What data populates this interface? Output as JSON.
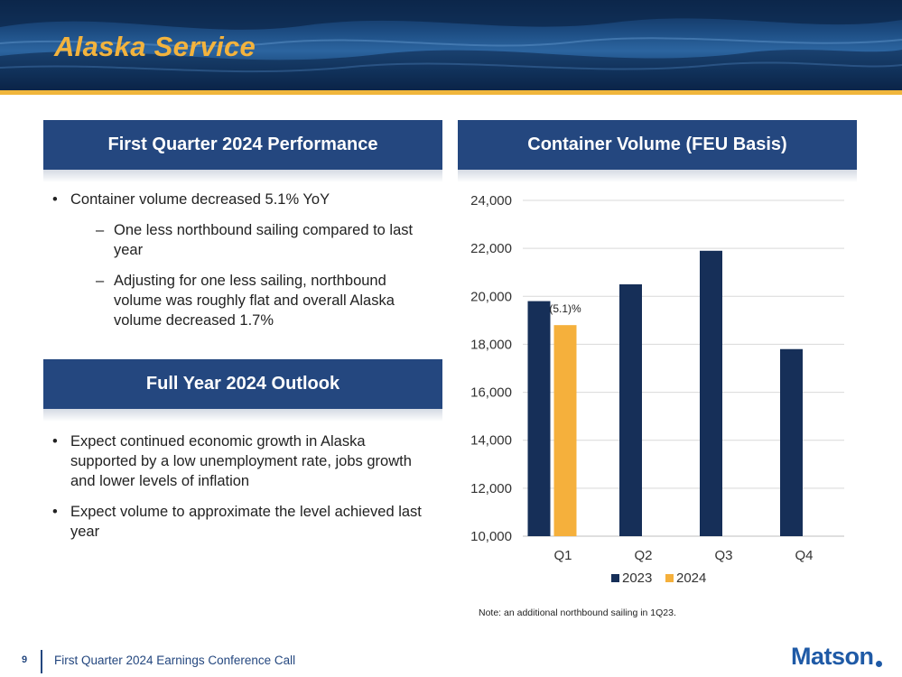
{
  "header": {
    "title": "Alaska Service"
  },
  "left": {
    "performance_heading": "First Quarter 2024 Performance",
    "performance_bullets": [
      {
        "text": "Container volume decreased 5.1% YoY",
        "subs": [
          "One less northbound sailing compared to last year",
          "Adjusting for one less sailing, northbound volume was roughly flat and overall Alaska volume decreased 1.7%"
        ]
      }
    ],
    "outlook_heading": "Full Year 2024 Outlook",
    "outlook_bullets": [
      "Expect continued economic growth in Alaska supported by a low unemployment rate, jobs growth and lower levels of inflation",
      "Expect volume to approximate the level achieved last year"
    ]
  },
  "right": {
    "chart_heading": "Container Volume (FEU Basis)",
    "note": "Note: an additional northbound sailing in 1Q23."
  },
  "chart_data": {
    "type": "bar",
    "categories": [
      "Q1",
      "Q2",
      "Q3",
      "Q4"
    ],
    "series": [
      {
        "name": "2023",
        "values": [
          19800,
          20500,
          21900,
          17800
        ],
        "color": "#162f58"
      },
      {
        "name": "2024",
        "values": [
          18800,
          null,
          null,
          null
        ],
        "color": "#f5b03c"
      }
    ],
    "ylim": [
      10000,
      24000
    ],
    "yticks": [
      10000,
      12000,
      14000,
      16000,
      18000,
      20000,
      22000,
      24000
    ],
    "ytick_labels": [
      "10,000",
      "12,000",
      "14,000",
      "16,000",
      "18,000",
      "20,000",
      "22,000",
      "24,000"
    ],
    "annotations": [
      {
        "category": "Q1",
        "series": "2024",
        "text": "(5.1)%"
      }
    ],
    "grid": true,
    "legend": "bottom"
  },
  "footer": {
    "page_number": "9",
    "text": "First Quarter 2024 Earnings Conference Call",
    "logo": "Matson"
  }
}
